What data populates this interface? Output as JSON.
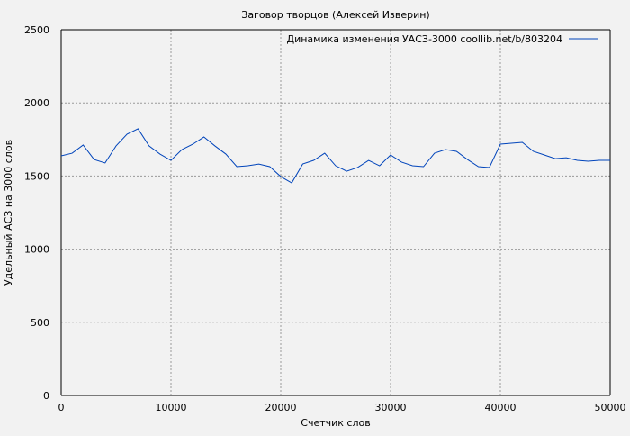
{
  "chart_data": {
    "type": "line",
    "title": "Заговор творцов (Алексей Изверин)",
    "xlabel": "Счетчик слов",
    "ylabel": "Удельный АСЗ на 3000 слов",
    "xlim": [
      0,
      50000
    ],
    "ylim": [
      0,
      2500
    ],
    "xticks": [
      "0",
      "10000",
      "20000",
      "30000",
      "40000",
      "50000"
    ],
    "yticks": [
      "0",
      "500",
      "1000",
      "1500",
      "2000",
      "2500"
    ],
    "grid": true,
    "legend_position": "top-right",
    "series": [
      {
        "name": "Динамика изменения УАСЗ-3000 coollib.net/b/803204",
        "color": "#0044bb",
        "x": [
          0,
          1000,
          2000,
          3000,
          4000,
          5000,
          6000,
          7000,
          8000,
          9000,
          10000,
          11000,
          12000,
          13000,
          14000,
          15000,
          16000,
          17000,
          18000,
          19000,
          20000,
          21000,
          22000,
          23000,
          24000,
          25000,
          26000,
          27000,
          28000,
          29000,
          30000,
          31000,
          32000,
          33000,
          34000,
          35000,
          36000,
          37000,
          38000,
          39000,
          40000,
          41000,
          42000,
          43000,
          44000,
          45000,
          46000,
          47000,
          48000,
          49000,
          50000
        ],
        "values": [
          1638,
          1656,
          1712,
          1613,
          1589,
          1706,
          1786,
          1823,
          1706,
          1650,
          1607,
          1681,
          1718,
          1767,
          1706,
          1650,
          1564,
          1570,
          1582,
          1564,
          1496,
          1453,
          1582,
          1607,
          1656,
          1570,
          1533,
          1558,
          1607,
          1570,
          1644,
          1595,
          1570,
          1564,
          1656,
          1681,
          1669,
          1613,
          1564,
          1558,
          1718,
          1724,
          1730,
          1669,
          1644,
          1619,
          1625,
          1607,
          1601,
          1607,
          1607
        ]
      }
    ]
  }
}
